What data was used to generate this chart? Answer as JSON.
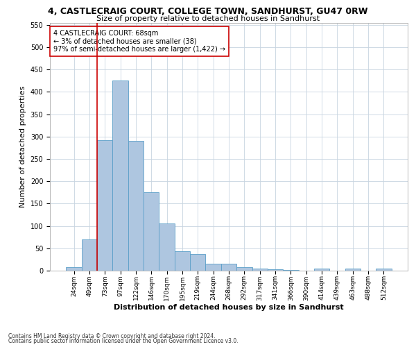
{
  "title1": "4, CASTLECRAIG COURT, COLLEGE TOWN, SANDHURST, GU47 0RW",
  "title2": "Size of property relative to detached houses in Sandhurst",
  "xlabel": "Distribution of detached houses by size in Sandhurst",
  "ylabel": "Number of detached properties",
  "footnote1": "Contains HM Land Registry data © Crown copyright and database right 2024.",
  "footnote2": "Contains public sector information licensed under the Open Government Licence v3.0.",
  "annotation_line1": "4 CASTLECRAIG COURT: 68sqm",
  "annotation_line2": "← 3% of detached houses are smaller (38)",
  "annotation_line3": "97% of semi-detached houses are larger (1,422) →",
  "bar_color": "#aec6e0",
  "bar_edge_color": "#5a9ec8",
  "grid_color": "#c8d4e0",
  "vline_color": "#cc0000",
  "annotation_box_color": "#cc0000",
  "categories": [
    "24sqm",
    "49sqm",
    "73sqm",
    "97sqm",
    "122sqm",
    "146sqm",
    "170sqm",
    "195sqm",
    "219sqm",
    "244sqm",
    "268sqm",
    "292sqm",
    "317sqm",
    "341sqm",
    "366sqm",
    "390sqm",
    "414sqm",
    "439sqm",
    "463sqm",
    "488sqm",
    "512sqm"
  ],
  "values": [
    8,
    70,
    292,
    425,
    290,
    175,
    105,
    44,
    37,
    15,
    16,
    8,
    5,
    3,
    2,
    0,
    4,
    0,
    5,
    0,
    4
  ],
  "ylim": [
    0,
    555
  ],
  "yticks": [
    0,
    50,
    100,
    150,
    200,
    250,
    300,
    350,
    400,
    450,
    500,
    550
  ],
  "vline_bin_index": 2,
  "bar_width": 1.0,
  "title1_fontsize": 9,
  "title2_fontsize": 8,
  "ylabel_fontsize": 8,
  "xlabel_fontsize": 8,
  "ytick_fontsize": 7,
  "xtick_fontsize": 6.5,
  "annotation_fontsize": 7,
  "footnote_fontsize": 5.5
}
